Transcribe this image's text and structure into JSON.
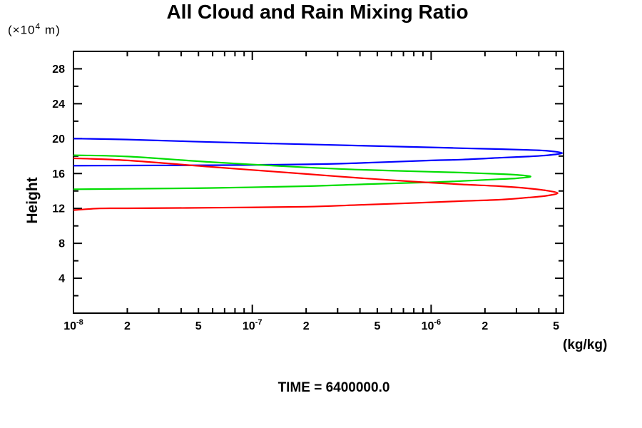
{
  "labels": {
    "title": "All Cloud and Rain Mixing Ratio",
    "y_unit_prefix": "(×10",
    "y_unit_exponent": "4",
    "y_unit_suffix": " m)",
    "y_axis_title": "Height",
    "x_unit": "(kg/kg)",
    "time": "TIME = 6400000.0"
  },
  "chart_data": {
    "type": "line",
    "title": "All Cloud and Rain Mixing Ratio",
    "xlabel": "(kg/kg)",
    "ylabel": "Height",
    "y_unit": "(×10^4 m)",
    "time": "6400000.0",
    "x_scale": "log",
    "xlim": [
      1e-08,
      5.5e-06
    ],
    "ylim": [
      0,
      30
    ],
    "grid": false,
    "legend": "none",
    "background": "#ffffff",
    "axis_color": "#000000",
    "y_major_ticks": [
      4,
      8,
      12,
      16,
      20,
      24,
      28
    ],
    "y_minor_ticks": [
      2,
      6,
      10,
      14,
      18,
      22,
      26
    ],
    "x_decade_exponents": [
      -8,
      -7,
      -6
    ],
    "x_minor_mantissas": [
      2,
      3,
      4,
      5,
      6,
      7,
      8,
      9
    ],
    "x_labeled_mantissas": [
      2,
      5
    ],
    "series": [
      {
        "name": "blue",
        "color": "#0000ff",
        "peak_value": 5.4e-06,
        "peak_height": 18.35,
        "points_value_height": [
          [
            1e-08,
            16.9
          ],
          [
            2e-08,
            16.92
          ],
          [
            6e-08,
            16.95
          ],
          [
            2e-07,
            17.05
          ],
          [
            3.9e-07,
            17.2
          ],
          [
            1e-06,
            17.5
          ],
          [
            1.5e-06,
            17.6
          ],
          [
            2.4e-06,
            17.8
          ],
          [
            3.5e-06,
            17.95
          ],
          [
            4.5e-06,
            18.1
          ],
          [
            5.4e-06,
            18.35
          ],
          [
            4.5e-06,
            18.6
          ],
          [
            3.5e-06,
            18.7
          ],
          [
            2.4e-06,
            18.8
          ],
          [
            1.5e-06,
            18.9
          ],
          [
            1e-06,
            19.0
          ],
          [
            3.9e-07,
            19.2
          ],
          [
            2e-07,
            19.35
          ],
          [
            6e-08,
            19.6
          ],
          [
            2e-08,
            19.9
          ],
          [
            1e-08,
            20.0
          ]
        ]
      },
      {
        "name": "green",
        "color": "#00dd00",
        "peak_value": 3.6e-06,
        "peak_height": 15.65,
        "points_value_height": [
          [
            1e-08,
            14.2
          ],
          [
            2e-08,
            14.25
          ],
          [
            6e-08,
            14.35
          ],
          [
            2e-07,
            14.55
          ],
          [
            3.9e-07,
            14.75
          ],
          [
            1e-06,
            15.0
          ],
          [
            1.5e-06,
            15.15
          ],
          [
            2.4e-06,
            15.35
          ],
          [
            3e-06,
            15.45
          ],
          [
            3.6e-06,
            15.65
          ],
          [
            3e-06,
            15.85
          ],
          [
            2.4e-06,
            15.95
          ],
          [
            1.5e-06,
            16.1
          ],
          [
            1e-06,
            16.2
          ],
          [
            3.9e-07,
            16.45
          ],
          [
            2e-07,
            16.7
          ],
          [
            6e-08,
            17.3
          ],
          [
            2e-08,
            17.95
          ],
          [
            1e-08,
            18.1
          ]
        ]
      },
      {
        "name": "red",
        "color": "#ff0000",
        "peak_value": 5.1e-06,
        "peak_height": 13.75,
        "points_value_height": [
          [
            1e-08,
            11.8
          ],
          [
            1.4e-08,
            12.0
          ],
          [
            2e-08,
            12.02
          ],
          [
            6e-08,
            12.08
          ],
          [
            2e-07,
            12.2
          ],
          [
            3.9e-07,
            12.4
          ],
          [
            1e-06,
            12.7
          ],
          [
            1.5e-06,
            12.85
          ],
          [
            2.4e-06,
            13.0
          ],
          [
            3.5e-06,
            13.25
          ],
          [
            4.4e-06,
            13.45
          ],
          [
            5.1e-06,
            13.75
          ],
          [
            4.4e-06,
            14.05
          ],
          [
            3.5e-06,
            14.3
          ],
          [
            2.4e-06,
            14.55
          ],
          [
            1.5e-06,
            14.75
          ],
          [
            1e-06,
            14.95
          ],
          [
            3.9e-07,
            15.5
          ],
          [
            2e-07,
            15.95
          ],
          [
            6e-08,
            16.75
          ],
          [
            2e-08,
            17.5
          ],
          [
            1e-08,
            17.75
          ]
        ]
      }
    ]
  }
}
